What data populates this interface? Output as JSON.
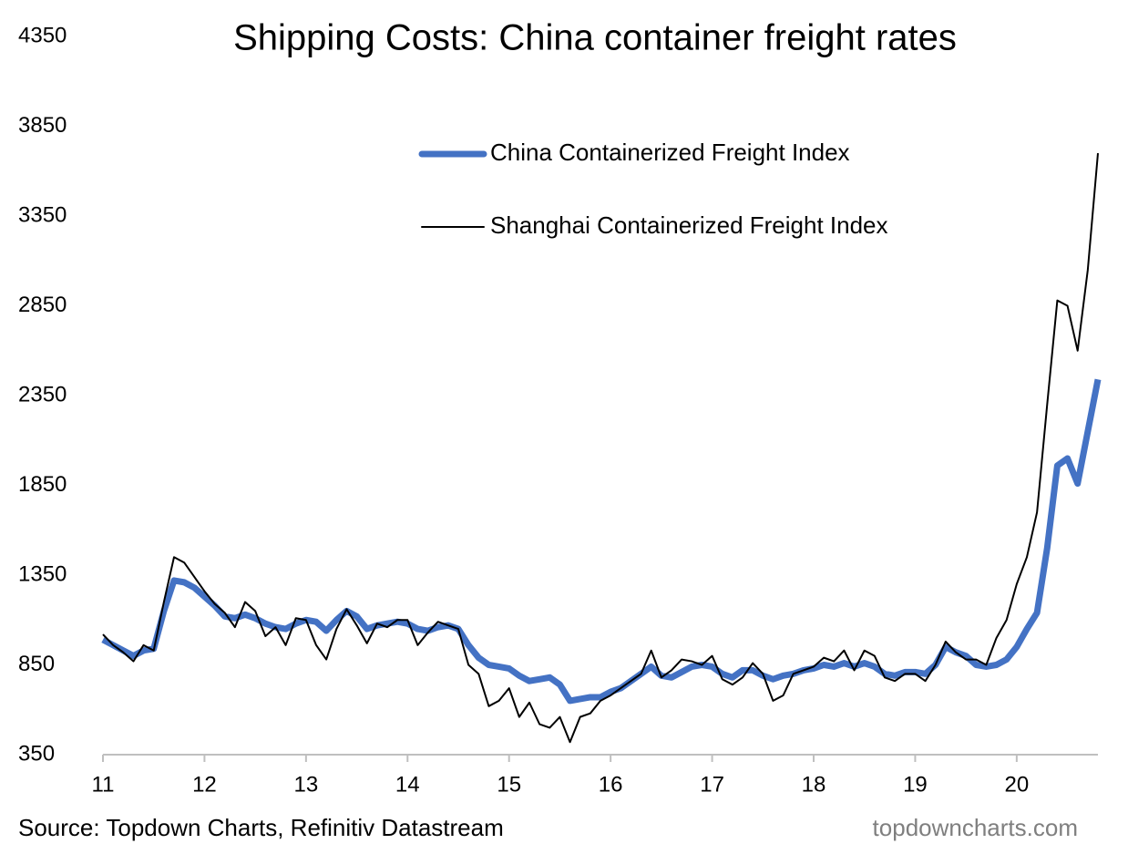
{
  "chart_data": {
    "type": "line",
    "title": "Shipping Costs: China container freight rates",
    "source": "Source: Topdown Charts, Refinitiv Datastream",
    "watermark": "topdowncharts.com",
    "legend": "upper right",
    "grid": false,
    "xlim": [
      11,
      20.8
    ],
    "xticks": [
      11,
      12,
      13,
      14,
      15,
      16,
      17,
      18,
      19,
      20
    ],
    "ylim": [
      350,
      4350
    ],
    "yticks": [
      350,
      850,
      1350,
      1850,
      2350,
      2850,
      3350,
      3850,
      4350
    ],
    "x": [
      11.0,
      11.1,
      11.2,
      11.3,
      11.4,
      11.5,
      11.6,
      11.7,
      11.8,
      11.9,
      12.0,
      12.1,
      12.2,
      12.3,
      12.4,
      12.5,
      12.6,
      12.7,
      12.8,
      12.9,
      13.0,
      13.1,
      13.2,
      13.3,
      13.4,
      13.5,
      13.6,
      13.7,
      13.8,
      13.9,
      14.0,
      14.1,
      14.2,
      14.3,
      14.4,
      14.5,
      14.6,
      14.7,
      14.8,
      14.9,
      15.0,
      15.1,
      15.2,
      15.3,
      15.4,
      15.5,
      15.6,
      15.7,
      15.8,
      15.9,
      16.0,
      16.1,
      16.2,
      16.3,
      16.4,
      16.5,
      16.6,
      16.7,
      16.8,
      16.9,
      17.0,
      17.1,
      17.2,
      17.3,
      17.4,
      17.5,
      17.6,
      17.7,
      17.8,
      17.9,
      18.0,
      18.1,
      18.2,
      18.3,
      18.4,
      18.5,
      18.6,
      18.7,
      18.8,
      18.9,
      19.0,
      19.1,
      19.2,
      19.3,
      19.4,
      19.5,
      19.6,
      19.7,
      19.8,
      19.9,
      20.0,
      20.1,
      20.2,
      20.3,
      20.4,
      20.5,
      20.6,
      20.7,
      20.8
    ],
    "series": [
      {
        "name": "China Containerized Freight Index",
        "color": "#4472c4",
        "line_width": 7,
        "values": [
          990,
          960,
          930,
          900,
          930,
          940,
          1150,
          1320,
          1310,
          1280,
          1230,
          1180,
          1120,
          1110,
          1130,
          1110,
          1080,
          1060,
          1050,
          1080,
          1100,
          1090,
          1040,
          1100,
          1150,
          1120,
          1050,
          1070,
          1080,
          1090,
          1080,
          1050,
          1040,
          1060,
          1070,
          1050,
          960,
          890,
          850,
          840,
          830,
          790,
          760,
          770,
          780,
          740,
          650,
          660,
          670,
          670,
          700,
          720,
          760,
          800,
          840,
          790,
          780,
          810,
          840,
          850,
          840,
          800,
          780,
          820,
          820,
          790,
          770,
          790,
          800,
          820,
          830,
          850,
          840,
          860,
          840,
          860,
          840,
          800,
          790,
          810,
          810,
          800,
          850,
          950,
          920,
          900,
          850,
          840,
          850,
          880,
          950,
          1050,
          1140,
          1500,
          1960,
          2000,
          1860,
          2150,
          2440
        ]
      },
      {
        "name": "Shanghai Containerized Freight Index",
        "color": "#000000",
        "line_width": 2,
        "values": [
          1020,
          960,
          920,
          870,
          960,
          930,
          1200,
          1450,
          1420,
          1340,
          1260,
          1190,
          1140,
          1060,
          1200,
          1150,
          1010,
          1060,
          960,
          1110,
          1100,
          960,
          880,
          1050,
          1160,
          1070,
          970,
          1080,
          1060,
          1100,
          1100,
          960,
          1030,
          1090,
          1070,
          1050,
          850,
          800,
          620,
          650,
          720,
          560,
          640,
          520,
          500,
          560,
          420,
          560,
          580,
          650,
          680,
          720,
          760,
          800,
          930,
          780,
          820,
          880,
          870,
          850,
          900,
          770,
          740,
          780,
          860,
          800,
          650,
          680,
          800,
          820,
          840,
          890,
          870,
          930,
          820,
          930,
          900,
          780,
          760,
          800,
          800,
          760,
          850,
          980,
          920,
          880,
          880,
          850,
          1000,
          1100,
          1300,
          1450,
          1700,
          2300,
          2880,
          2850,
          2600,
          3050,
          3700
        ]
      }
    ]
  }
}
